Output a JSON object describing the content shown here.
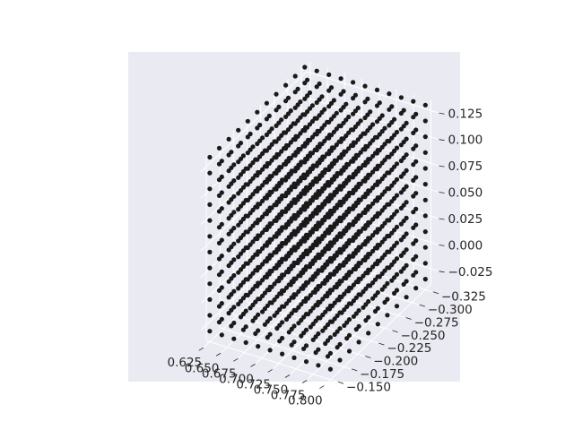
{
  "chart_data": {
    "type": "scatter",
    "projection": "3d",
    "title": "",
    "xlabel": "",
    "ylabel": "",
    "zlabel": "",
    "grid": true,
    "xlim": [
      0.62,
      0.81
    ],
    "ylim": [
      -0.335,
      -0.14
    ],
    "zlim": [
      -0.04,
      0.135
    ],
    "x_ticks": [
      "0.625",
      "0.650",
      "0.675",
      "0.700",
      "0.725",
      "0.750",
      "0.775",
      "0.800"
    ],
    "y_ticks": [
      "−0.325",
      "−0.300",
      "−0.275",
      "−0.250",
      "−0.225",
      "−0.200",
      "−0.175",
      "−0.150"
    ],
    "z_ticks": [
      "−0.025",
      "0.000",
      "0.025",
      "0.050",
      "0.075",
      "0.100",
      "0.125"
    ],
    "point_grid": {
      "description": "regular cubic lattice of points",
      "x_values": [
        0.625,
        0.6425,
        0.66,
        0.6775,
        0.695,
        0.7125,
        0.73,
        0.7475,
        0.765,
        0.7825,
        0.8
      ],
      "y_values": [
        -0.325,
        -0.3075,
        -0.29,
        -0.2725,
        -0.255,
        -0.2375,
        -0.22,
        -0.2025,
        -0.185,
        -0.1675,
        -0.15
      ],
      "z_values": [
        -0.03,
        -0.015,
        0.0,
        0.015,
        0.03,
        0.045,
        0.06,
        0.075,
        0.09,
        0.105,
        0.12,
        0.135
      ]
    },
    "marker_color": "#1a1a1a",
    "pane_color": "#eaeaf2",
    "background": "#eaeaf2"
  }
}
